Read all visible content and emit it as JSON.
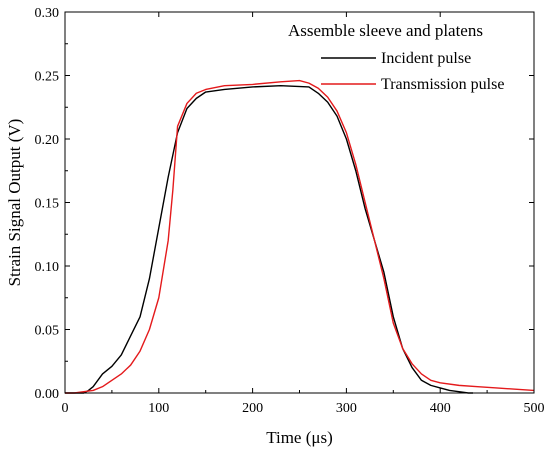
{
  "chart_data": {
    "type": "line",
    "title": "",
    "xlabel": "Time (μs)",
    "ylabel": "Strain Signal Output (V)",
    "xlim": [
      0,
      500
    ],
    "ylim": [
      0,
      0.3
    ],
    "x_ticks": [
      0,
      100,
      200,
      300,
      400,
      500
    ],
    "x_tick_labels": [
      "0",
      "100",
      "200",
      "300",
      "400",
      "500"
    ],
    "y_ticks": [
      0,
      0.05,
      0.1,
      0.15,
      0.2,
      0.25,
      0.3
    ],
    "y_tick_labels": [
      "0.00",
      "0.05",
      "0.10",
      "0.15",
      "0.20",
      "0.25",
      "0.30"
    ],
    "grid": false,
    "legend_title": "Assemble sleeve and platens",
    "legend_position": "top-right",
    "series": [
      {
        "name": "Incident pulse",
        "color": "#000000",
        "x": [
          0,
          20,
          25,
          30,
          40,
          50,
          60,
          70,
          80,
          90,
          100,
          110,
          120,
          130,
          140,
          150,
          170,
          200,
          230,
          260,
          270,
          280,
          290,
          300,
          310,
          320,
          330,
          340,
          350,
          360,
          370,
          380,
          390,
          400,
          410,
          420,
          430,
          435
        ],
        "y": [
          0,
          0,
          0.002,
          0.005,
          0.015,
          0.021,
          0.03,
          0.045,
          0.06,
          0.09,
          0.13,
          0.17,
          0.205,
          0.224,
          0.232,
          0.237,
          0.239,
          0.241,
          0.242,
          0.241,
          0.236,
          0.229,
          0.218,
          0.2,
          0.175,
          0.145,
          0.12,
          0.095,
          0.06,
          0.035,
          0.02,
          0.01,
          0.006,
          0.004,
          0.002,
          0.001,
          0.0,
          0.0
        ]
      },
      {
        "name": "Transmission pulse",
        "color": "#e41a1c",
        "x": [
          0,
          10,
          20,
          30,
          40,
          50,
          60,
          70,
          80,
          90,
          100,
          110,
          115,
          120,
          130,
          140,
          150,
          170,
          200,
          230,
          250,
          260,
          270,
          280,
          290,
          300,
          310,
          320,
          330,
          340,
          350,
          360,
          370,
          380,
          390,
          400,
          420,
          440,
          460,
          480,
          500
        ],
        "y": [
          0,
          0,
          0.001,
          0.002,
          0.005,
          0.01,
          0.015,
          0.022,
          0.033,
          0.05,
          0.075,
          0.12,
          0.16,
          0.21,
          0.228,
          0.236,
          0.239,
          0.242,
          0.243,
          0.245,
          0.246,
          0.244,
          0.24,
          0.233,
          0.222,
          0.205,
          0.18,
          0.15,
          0.12,
          0.09,
          0.055,
          0.035,
          0.023,
          0.015,
          0.01,
          0.008,
          0.006,
          0.005,
          0.004,
          0.003,
          0.002
        ]
      }
    ]
  }
}
